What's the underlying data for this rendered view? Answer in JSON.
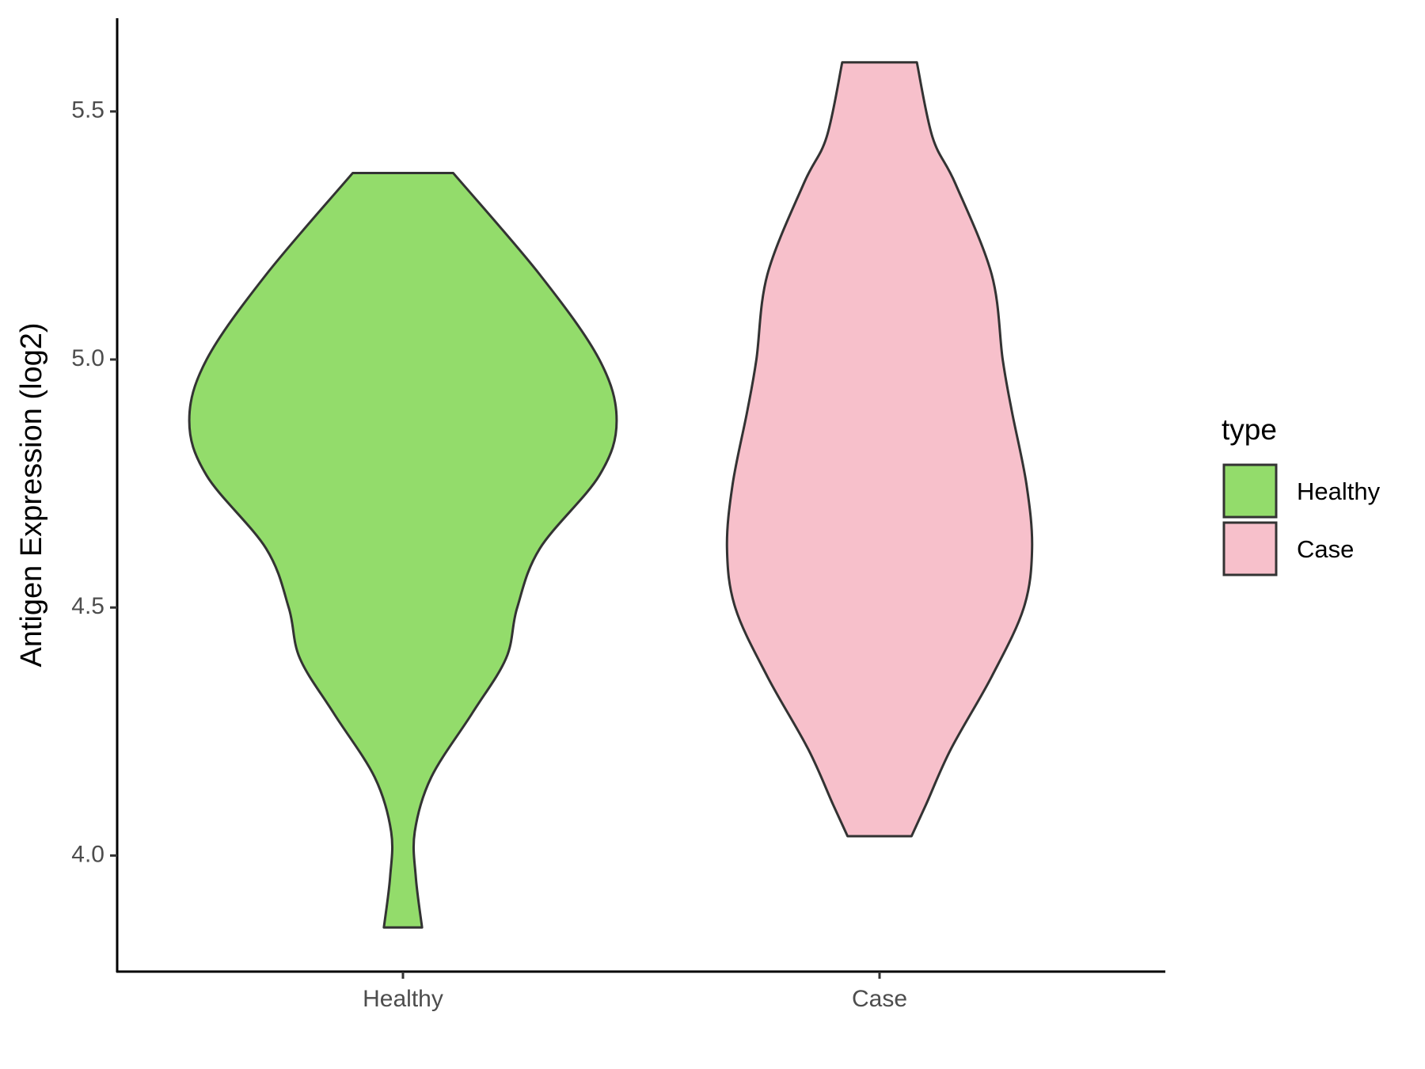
{
  "chart_data": {
    "type": "violin",
    "y_label": "Antigen Expression (log2)",
    "ylim": [
      3.766,
      5.688
    ],
    "yticks": [
      {
        "value": 4,
        "label": "4.0"
      },
      {
        "value": 4.5,
        "label": "4.5"
      },
      {
        "value": 5,
        "label": "5.0"
      },
      {
        "value": 5.5,
        "label": "5.5"
      }
    ],
    "categories": [
      "Healthy",
      "Case"
    ],
    "legend_title": "type",
    "series": [
      {
        "name": "Healthy",
        "color": "#93dc6b",
        "y": [
          5.376,
          5.171,
          5.0,
          4.877,
          4.766,
          4.619,
          4.499,
          4.398,
          4.287,
          4.158,
          4.048,
          3.956,
          3.855
        ],
        "width": [
          0.234,
          0.638,
          0.915,
          0.996,
          0.915,
          0.638,
          0.532,
          0.481,
          0.323,
          0.132,
          0.055,
          0.06,
          0.089
        ]
      },
      {
        "name": "Case",
        "color": "#f7c0cb",
        "y": [
          5.599,
          5.448,
          5.355,
          5.171,
          5.0,
          4.895,
          4.748,
          4.619,
          4.499,
          4.361,
          4.214,
          4.103,
          4.039
        ],
        "width": [
          0.174,
          0.247,
          0.353,
          0.523,
          0.574,
          0.617,
          0.685,
          0.711,
          0.672,
          0.523,
          0.332,
          0.217,
          0.149
        ]
      }
    ]
  }
}
